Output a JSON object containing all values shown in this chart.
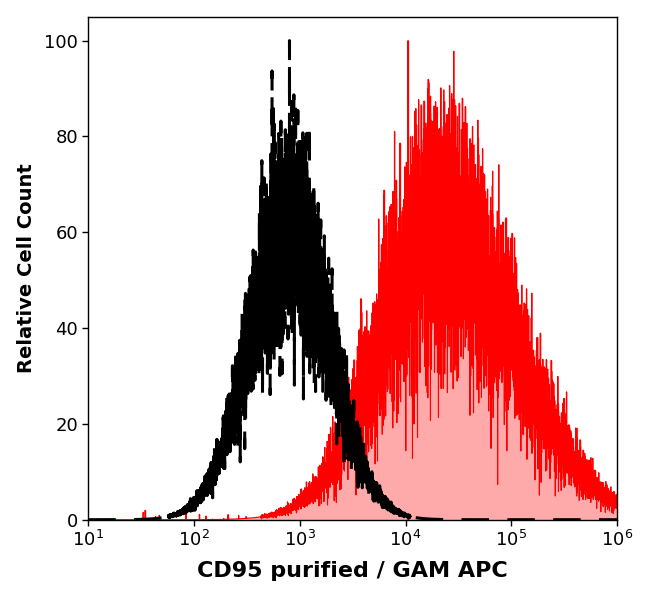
{
  "title": "",
  "xlabel": "CD95 purified / GAM APC",
  "ylabel": "Relative Cell Count",
  "xlim": [
    10,
    1000000
  ],
  "ylim": [
    0,
    105
  ],
  "yticks": [
    0,
    20,
    40,
    60,
    80,
    100
  ],
  "xtick_vals": [
    10,
    100,
    1000,
    10000,
    100000,
    1000000
  ],
  "background_color": "#ffffff",
  "dashed_color": "#000000",
  "red_fill_color": "#ffaaaa",
  "red_line_color": "#ff0000",
  "dashed_peak_x_log": 2.9,
  "dashed_sigma": 0.38,
  "red_peak_x_log": 4.3,
  "red_sigma": 0.55,
  "xlabel_fontsize": 16,
  "ylabel_fontsize": 14,
  "tick_fontsize": 13
}
